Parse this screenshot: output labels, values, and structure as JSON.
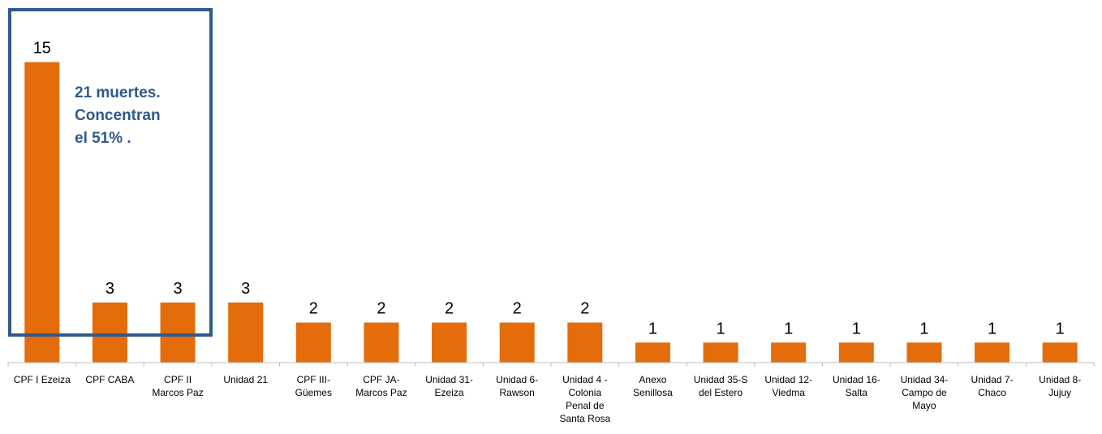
{
  "chart_data": {
    "type": "bar",
    "title": "",
    "xlabel": "",
    "ylabel": "",
    "ylim": [
      0,
      15
    ],
    "grid": false,
    "legend": "none",
    "bar_color": "#e46c0a",
    "categories": [
      [
        "CPF I Ezeiza"
      ],
      [
        "CPF CABA"
      ],
      [
        "CPF II",
        "Marcos Paz"
      ],
      [
        "Unidad 21"
      ],
      [
        "CPF III-",
        "Güemes"
      ],
      [
        "CPF JA-",
        "Marcos Paz"
      ],
      [
        "Unidad 31-",
        "Ezeiza"
      ],
      [
        "Unidad 6-",
        "Rawson"
      ],
      [
        "Unidad 4 -",
        "Colonia",
        "Penal de",
        "Santa Rosa"
      ],
      [
        "Anexo",
        "Senillosa"
      ],
      [
        "Unidad 35-S",
        "del Estero"
      ],
      [
        "Unidad 12-",
        "Viedma"
      ],
      [
        "Unidad 16-",
        "Salta"
      ],
      [
        "Unidad 34-",
        "Campo de",
        "Mayo"
      ],
      [
        "Unidad 7-",
        "Chaco"
      ],
      [
        "Unidad 8-",
        "Jujuy"
      ]
    ],
    "values": [
      15,
      3,
      3,
      3,
      2,
      2,
      2,
      2,
      2,
      1,
      1,
      1,
      1,
      1,
      1,
      1
    ],
    "annotation": {
      "lines": [
        "21 muertes.",
        "Concentran",
        "el 51% ."
      ],
      "color": "#2f5a8c"
    }
  }
}
